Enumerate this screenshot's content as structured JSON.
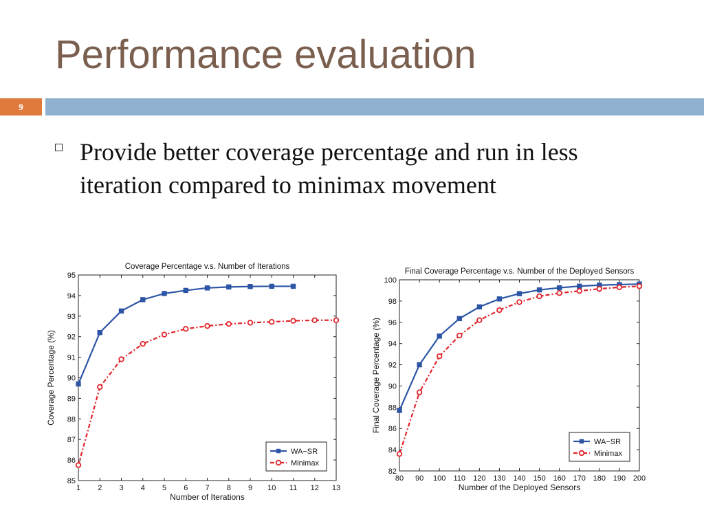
{
  "slide": {
    "title": "Performance evaluation",
    "number": "9",
    "bullet": "Provide better coverage percentage and run in less iteration compared to minimax movement"
  },
  "colors": {
    "title": "#7a5f4f",
    "accent": "#e07a3c",
    "bar": "#8fb0cf",
    "series1": "#2c55a5",
    "series2": "#e0242a"
  },
  "chart_data": [
    {
      "type": "line",
      "title": "Coverage Percentage v.s. Number of Iterations",
      "xlabel": "Number of Iterations",
      "ylabel": "Coverage Percentage (%)",
      "xlim": [
        1,
        13
      ],
      "ylim": [
        85,
        95
      ],
      "xticks": [
        1,
        2,
        3,
        4,
        5,
        6,
        7,
        8,
        9,
        10,
        11,
        12,
        13
      ],
      "yticks": [
        85,
        86,
        87,
        88,
        89,
        90,
        91,
        92,
        93,
        94,
        95
      ],
      "grid": false,
      "legend_position": "bottom-right",
      "series": [
        {
          "name": "WA−SR",
          "color": "#2c55a5",
          "marker": "square",
          "dash": "solid",
          "x": [
            1,
            2,
            3,
            4,
            5,
            6,
            7,
            8,
            9,
            10,
            11
          ],
          "y": [
            89.7,
            92.2,
            93.25,
            93.8,
            94.1,
            94.25,
            94.37,
            94.42,
            94.44,
            94.45,
            94.45
          ]
        },
        {
          "name": "Minimax",
          "color": "#e0242a",
          "marker": "circle",
          "dash": "dashdot",
          "x": [
            1,
            2,
            3,
            4,
            5,
            6,
            7,
            8,
            9,
            10,
            11,
            12,
            13
          ],
          "y": [
            85.75,
            89.55,
            90.9,
            91.65,
            92.1,
            92.38,
            92.52,
            92.62,
            92.68,
            92.72,
            92.77,
            92.8,
            92.8
          ]
        }
      ]
    },
    {
      "type": "line",
      "title": "Final Coverage Percentage v.s. Number of the Deployed Sensors",
      "xlabel": "Number of the Deployed Sensors",
      "ylabel": "Final Coverage Percentage (%)",
      "xlim": [
        80,
        200
      ],
      "ylim": [
        82,
        100
      ],
      "xticks": [
        80,
        90,
        100,
        110,
        120,
        130,
        140,
        150,
        160,
        170,
        180,
        190,
        200
      ],
      "yticks": [
        82,
        84,
        86,
        88,
        90,
        92,
        94,
        96,
        98,
        100
      ],
      "grid": false,
      "legend_position": "bottom-right",
      "series": [
        {
          "name": "WA−SR",
          "color": "#2c55a5",
          "marker": "square",
          "dash": "solid",
          "x": [
            80,
            90,
            100,
            110,
            120,
            130,
            140,
            150,
            160,
            170,
            180,
            190,
            200
          ],
          "y": [
            87.7,
            92.0,
            94.7,
            96.35,
            97.45,
            98.2,
            98.7,
            99.05,
            99.25,
            99.4,
            99.5,
            99.55,
            99.6
          ]
        },
        {
          "name": "Minimax",
          "color": "#e0242a",
          "marker": "circle",
          "dash": "dashdot",
          "x": [
            80,
            90,
            100,
            110,
            120,
            130,
            140,
            150,
            160,
            170,
            180,
            190,
            200
          ],
          "y": [
            83.6,
            89.4,
            92.8,
            94.75,
            96.2,
            97.15,
            97.9,
            98.45,
            98.75,
            98.95,
            99.15,
            99.3,
            99.4
          ]
        }
      ]
    }
  ]
}
